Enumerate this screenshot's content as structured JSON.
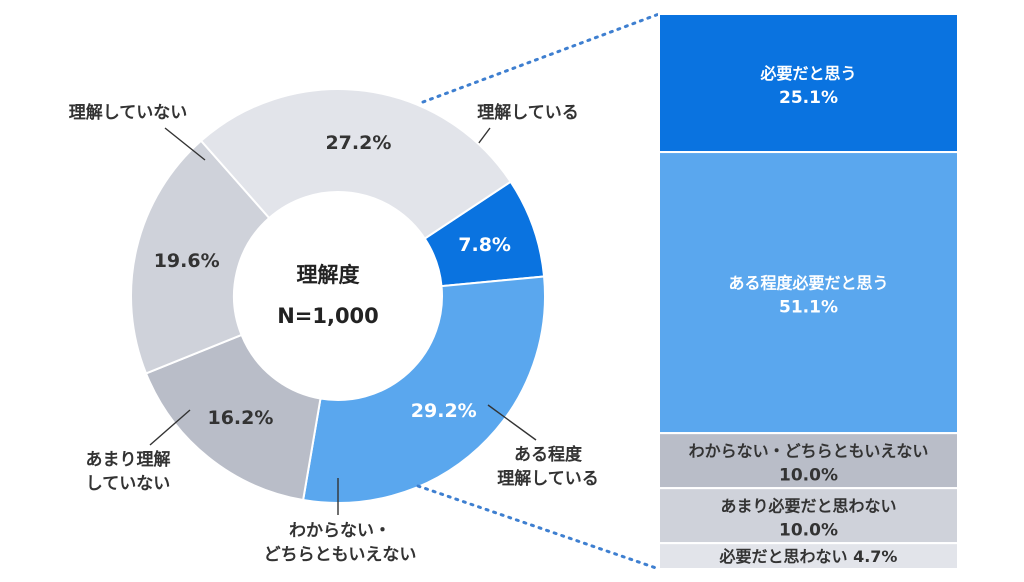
{
  "chart_data": [
    {
      "type": "pie",
      "title": "理解度",
      "subtitle": "N=1,000",
      "slices": [
        {
          "label": "理解している",
          "label_lines": [
            "理解している"
          ],
          "value": 7.8,
          "value_label": "7.8%",
          "color": "#0a73e0"
        },
        {
          "label": "ある程度理解している",
          "label_lines": [
            "ある程度",
            "理解している"
          ],
          "value": 29.2,
          "value_label": "29.2%",
          "color": "#5aa7ee"
        },
        {
          "label": "わからない・どちらともいえない",
          "label_lines": [
            "わからない・",
            "どちらともいえない"
          ],
          "value": 16.2,
          "value_label": "16.2%",
          "color": "#b9bdc8"
        },
        {
          "label": "あまり理解していない",
          "label_lines": [
            "あまり理解",
            "していない"
          ],
          "value": 19.6,
          "value_label": "19.6%",
          "color": "#cfd2da"
        },
        {
          "label": "理解していない",
          "label_lines": [
            "理解していない"
          ],
          "value": 27.2,
          "value_label": "27.2%",
          "color": "#e2e4ea"
        }
      ]
    },
    {
      "type": "bar",
      "stacked": true,
      "segments": [
        {
          "label": "必要だと思う",
          "value": 25.1,
          "value_label": "25.1%",
          "color": "#0a73e0"
        },
        {
          "label": "ある程度必要だと思う",
          "value": 51.1,
          "value_label": "51.1%",
          "color": "#5aa7ee"
        },
        {
          "label": "わからない・どちらともいえない",
          "value": 10.0,
          "value_label": "10.0%",
          "color": "#b9bdc8"
        },
        {
          "label": "あまり必要だと思わない",
          "value": 10.0,
          "value_label": "10.0%",
          "color": "#cfd2da"
        },
        {
          "label": "必要だと思わない",
          "value": 4.7,
          "value_label": "4.7%",
          "inline": true,
          "color": "#e2e4ea"
        }
      ]
    }
  ]
}
